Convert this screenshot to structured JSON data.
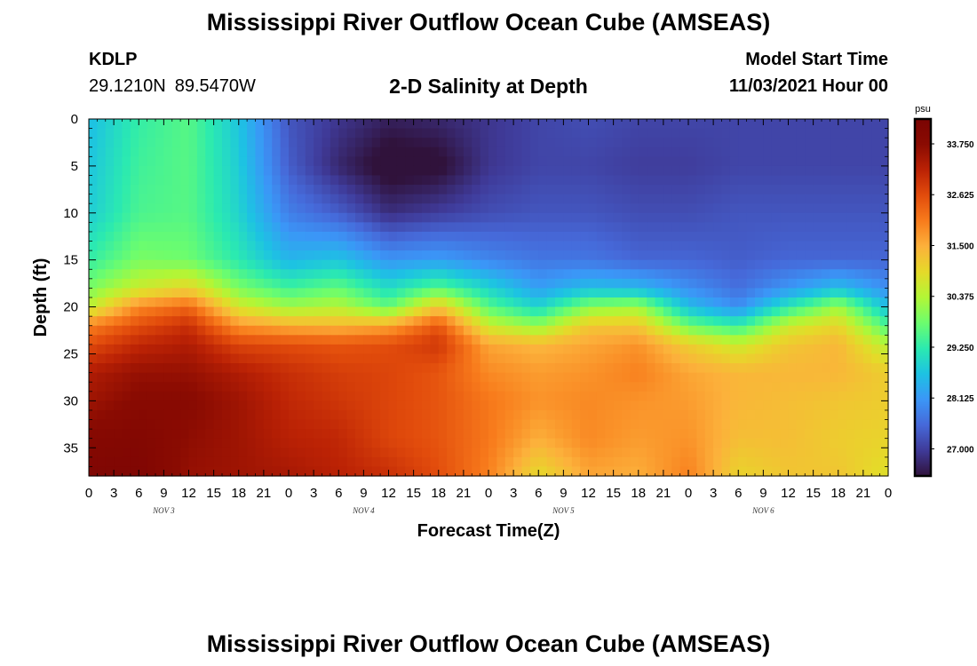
{
  "header": {
    "title": "Mississippi River Outflow Ocean Cube (AMSEAS)",
    "station": "KDLP",
    "lat": "29.1210N",
    "lon": "89.5470W",
    "subtitle": "2-D Salinity at Depth",
    "model_start_label": "Model Start Time",
    "model_start_value": "11/03/2021 Hour 00"
  },
  "footer": {
    "title": "Mississippi River Outflow Ocean Cube (AMSEAS)"
  },
  "chart_data": {
    "type": "heatmap",
    "title": "2-D Salinity at Depth",
    "xlabel": "Forecast Time(Z)",
    "ylabel": "Depth (ft)",
    "x_tick_labels": [
      "0",
      "3",
      "6",
      "9",
      "12",
      "15",
      "18",
      "21",
      "0",
      "3",
      "6",
      "9",
      "12",
      "15",
      "18",
      "21",
      "0",
      "3",
      "6",
      "9",
      "12",
      "15",
      "18",
      "21",
      "0",
      "3",
      "6",
      "9",
      "12",
      "15",
      "18",
      "21",
      "0"
    ],
    "day_labels": [
      "NOV 3",
      "NOV 4",
      "NOV 5",
      "NOV 6"
    ],
    "x_range_hours": [
      0,
      96
    ],
    "y_ticks": [
      0,
      5,
      10,
      15,
      20,
      25,
      30,
      35
    ],
    "y_range_ft": [
      0,
      38
    ],
    "y_inverted": true,
    "colorbar": {
      "unit": "psu",
      "ticks": [
        27.0,
        28.125,
        29.25,
        30.375,
        31.5,
        32.625,
        33.75
      ],
      "tick_labels": [
        "27.000",
        "28.125",
        "29.250",
        "30.375",
        "31.500",
        "32.625",
        "33.750"
      ],
      "range": [
        26.4,
        34.3
      ],
      "colormap": [
        "#30123b",
        "#3f3a98",
        "#4669d9",
        "#3b96f7",
        "#1dc2e3",
        "#2beab0",
        "#6cfd6e",
        "#b2f636",
        "#e5da29",
        "#fcb13b",
        "#f87c1c",
        "#e24c0c",
        "#bb2205",
        "#8a0b02",
        "#7a0403"
      ]
    },
    "hours": [
      0,
      6,
      12,
      18,
      24,
      30,
      36,
      42,
      48,
      54,
      60,
      66,
      72,
      78,
      84,
      90,
      96
    ],
    "depths_ft": [
      0,
      5,
      10,
      15,
      18,
      20,
      22,
      24,
      27,
      30,
      34,
      38
    ],
    "values": [
      [
        28.6,
        29.3,
        29.6,
        28.7,
        27.3,
        26.9,
        26.6,
        26.7,
        26.9,
        27.1,
        27.2,
        27.1,
        27.1,
        27.1,
        27.1,
        27.1,
        27.1
      ],
      [
        28.7,
        29.4,
        29.6,
        28.8,
        27.4,
        26.7,
        26.2,
        26.3,
        26.9,
        27.1,
        27.1,
        27.0,
        27.0,
        27.1,
        27.1,
        27.1,
        27.1
      ],
      [
        28.8,
        29.5,
        29.6,
        28.9,
        27.8,
        27.4,
        26.8,
        27.0,
        27.2,
        27.3,
        27.3,
        27.2,
        27.2,
        27.3,
        27.3,
        27.3,
        27.3
      ],
      [
        29.3,
        29.9,
        29.8,
        29.2,
        28.5,
        28.7,
        28.1,
        28.2,
        27.9,
        27.7,
        27.7,
        27.5,
        27.5,
        27.4,
        27.5,
        27.5,
        27.5
      ],
      [
        29.9,
        30.6,
        31.0,
        29.9,
        29.4,
        29.7,
        29.0,
        29.6,
        28.9,
        28.2,
        28.6,
        28.5,
        28.0,
        27.6,
        28.1,
        28.6,
        28.0
      ],
      [
        30.5,
        31.9,
        32.3,
        30.7,
        30.2,
        30.4,
        29.7,
        31.2,
        29.6,
        28.9,
        30.0,
        30.2,
        28.6,
        28.0,
        29.2,
        30.2,
        28.6
      ],
      [
        32.0,
        32.6,
        33.0,
        31.8,
        31.5,
        31.4,
        31.6,
        32.5,
        30.6,
        30.1,
        31.2,
        31.2,
        29.8,
        29.3,
        30.6,
        31.0,
        29.5
      ],
      [
        32.6,
        33.1,
        33.3,
        32.7,
        32.6,
        32.5,
        32.6,
        32.9,
        31.6,
        31.4,
        31.6,
        31.8,
        31.1,
        30.6,
        31.2,
        31.4,
        30.4
      ],
      [
        33.3,
        33.6,
        33.6,
        33.3,
        33.0,
        32.8,
        32.7,
        32.5,
        31.9,
        31.7,
        31.8,
        32.0,
        31.6,
        31.4,
        31.4,
        31.4,
        31.1
      ],
      [
        33.5,
        33.8,
        33.8,
        33.5,
        33.1,
        32.9,
        32.7,
        32.5,
        32.1,
        31.8,
        31.9,
        31.8,
        31.7,
        31.4,
        31.3,
        31.2,
        31.1
      ],
      [
        33.9,
        34.0,
        33.7,
        33.5,
        33.2,
        33.1,
        32.7,
        32.5,
        32.1,
        31.5,
        31.9,
        31.7,
        31.8,
        31.3,
        31.3,
        31.1,
        31.0
      ],
      [
        34.1,
        34.1,
        33.6,
        33.5,
        33.4,
        33.2,
        33.0,
        32.6,
        32.0,
        30.9,
        31.6,
        31.5,
        32.0,
        31.0,
        31.2,
        31.2,
        30.8
      ]
    ]
  }
}
